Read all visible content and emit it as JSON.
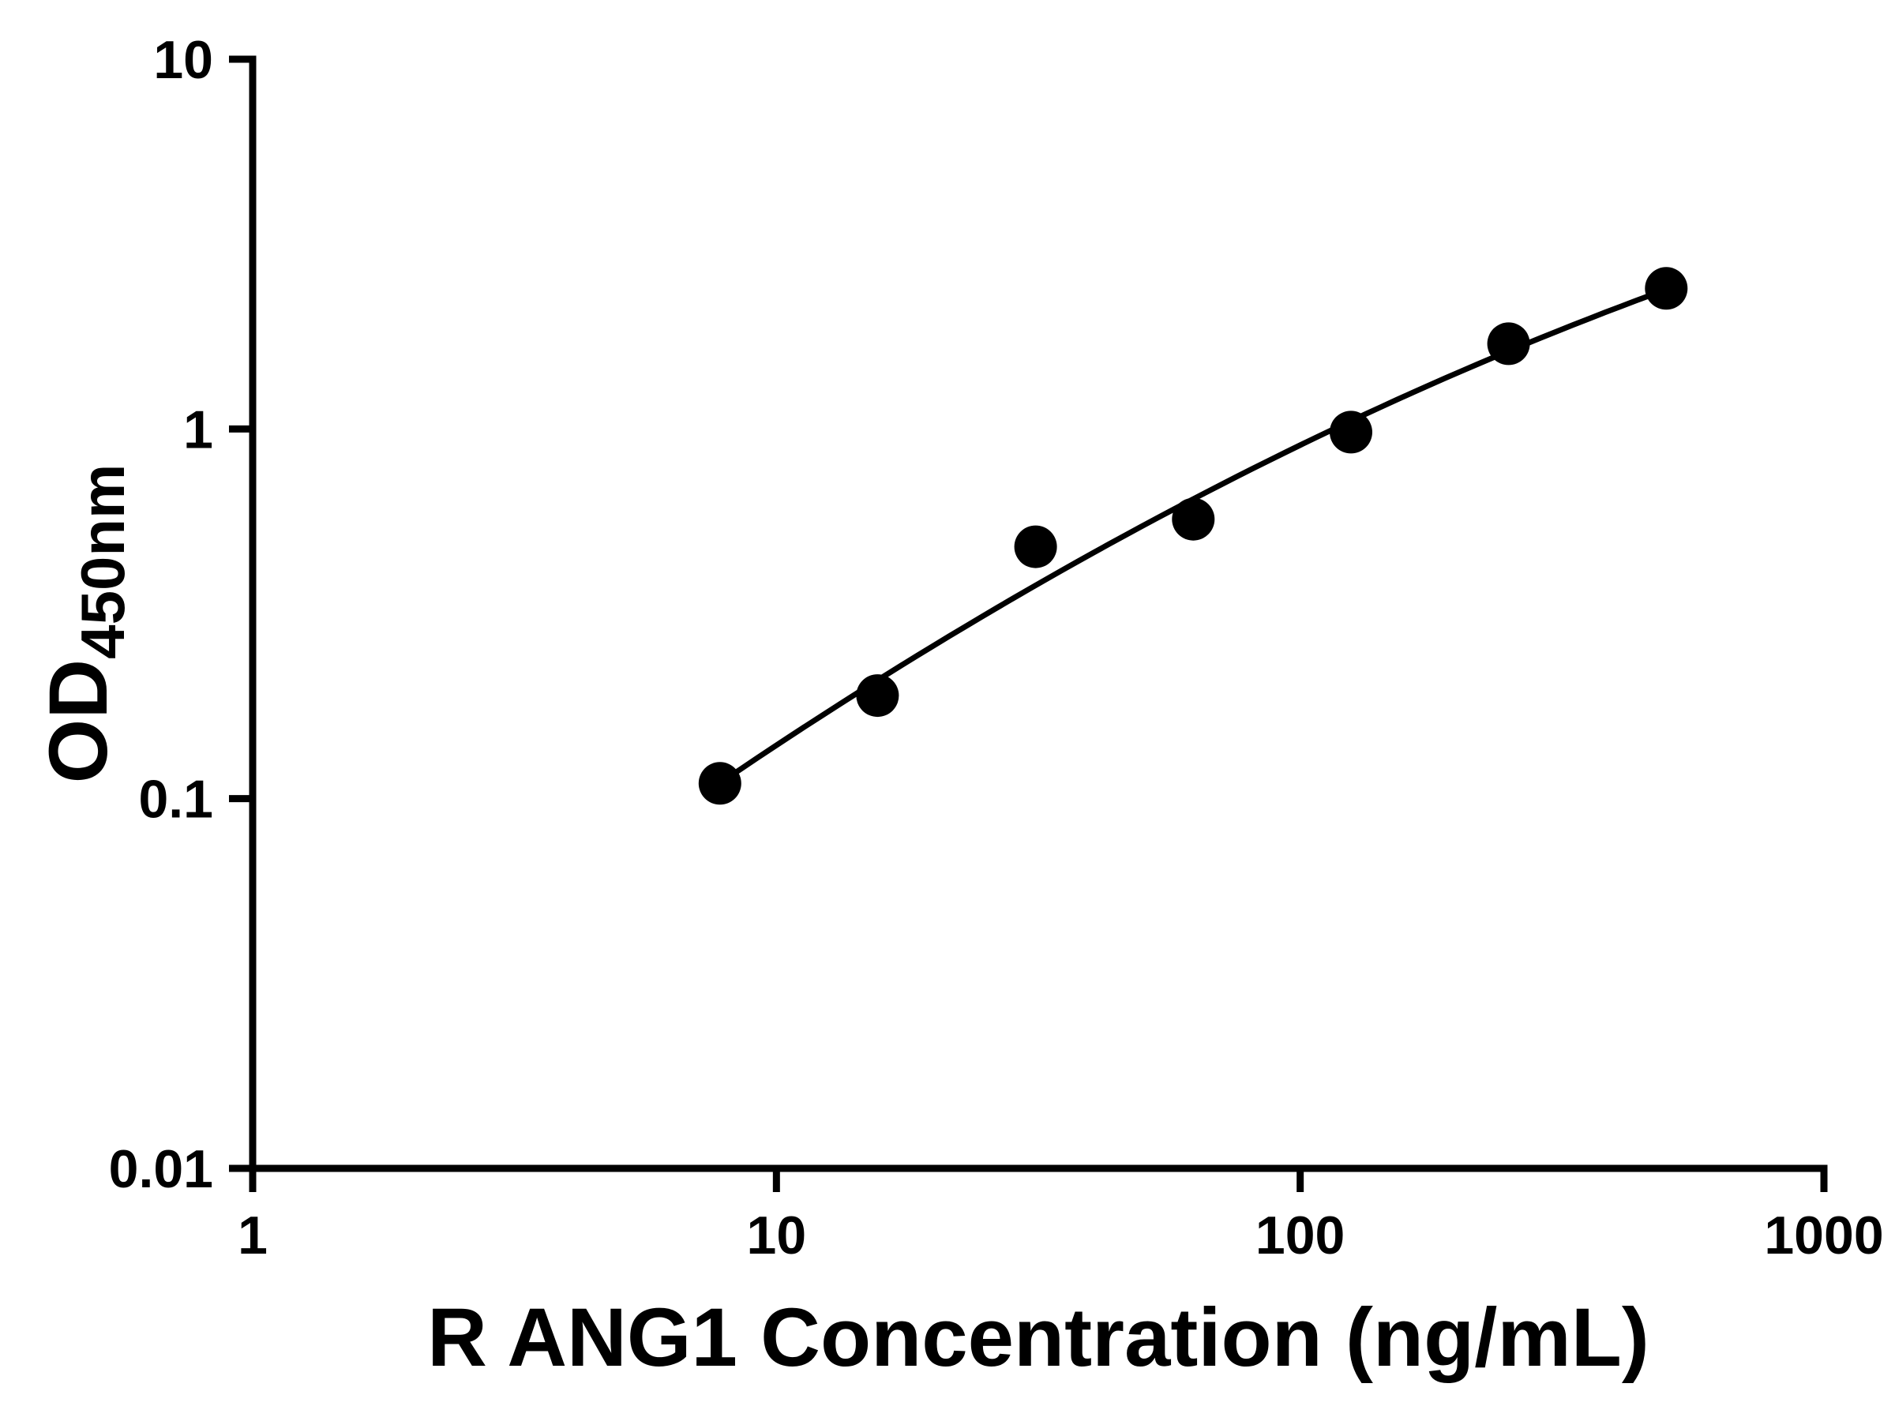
{
  "chart_data": {
    "type": "scatter",
    "title": "",
    "xlabel": "R ANG1 Concentration (ng/mL)",
    "ylabel": "OD450nm",
    "ylabel_main": "OD",
    "ylabel_sub": "450nm",
    "x_scale": "log",
    "y_scale": "log",
    "xlim": [
      1,
      1000
    ],
    "ylim": [
      0.01,
      10
    ],
    "x_ticks": [
      1,
      10,
      100,
      1000
    ],
    "x_tick_labels": [
      "1",
      "10",
      "100",
      "1000"
    ],
    "y_ticks": [
      0.01,
      0.1,
      1,
      10
    ],
    "y_tick_labels": [
      "0.01",
      "0.1",
      "1",
      "10"
    ],
    "grid": false,
    "legend": "none",
    "points": {
      "x": [
        7.8,
        15.6,
        31.25,
        62.5,
        125,
        250,
        500
      ],
      "y": [
        0.11,
        0.19,
        0.48,
        0.57,
        0.98,
        1.7,
        2.4
      ]
    },
    "fit": "smooth fitted standard curve through points",
    "colors": {
      "marker": "#000000",
      "line": "#000000",
      "axis": "#000000",
      "text": "#000000",
      "background": "#ffffff"
    }
  }
}
